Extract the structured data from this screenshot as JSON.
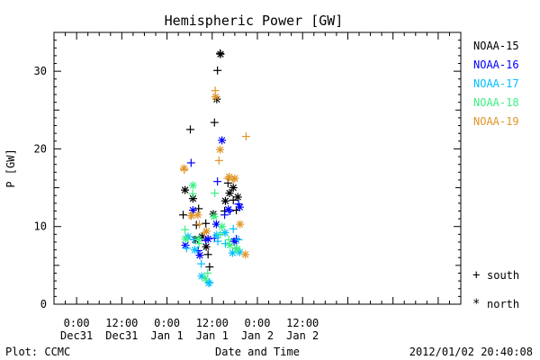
{
  "chart_data": {
    "type": "scatter",
    "title": "Hemispheric Power [GW]",
    "ylabel": "P [GW]",
    "xlabel": "Date and Time",
    "ylim": [
      0,
      35
    ],
    "yticks": [
      0,
      10,
      20,
      30
    ],
    "xlim_hours": [
      -30,
      78
    ],
    "xticks": [
      {
        "hours": -24,
        "line1": "0:00",
        "line2": "Dec31"
      },
      {
        "hours": -12,
        "line1": "12:00",
        "line2": "Dec31"
      },
      {
        "hours": 0,
        "line1": "0:00",
        "line2": "Jan 1"
      },
      {
        "hours": 12,
        "line1": "12:00",
        "line2": "Jan 1"
      },
      {
        "hours": 24,
        "line1": "0:00",
        "line2": "Jan 2"
      },
      {
        "hours": 36,
        "line1": "12:00",
        "line2": "Jan 2"
      }
    ],
    "grid": false,
    "legend_position": "right",
    "series": [
      {
        "name": "NOAA-15",
        "color": "#000000",
        "south": [
          [
            4.3,
            11.5
          ],
          [
            6.2,
            22.5
          ],
          [
            7.8,
            10.2
          ],
          [
            8.4,
            12.3
          ],
          [
            10.3,
            10.4
          ],
          [
            10.9,
            6.4
          ],
          [
            11.3,
            4.8
          ],
          [
            12.6,
            23.4
          ],
          [
            13.4,
            30.1
          ],
          [
            14.1,
            32.3
          ],
          [
            15.3,
            12.0
          ],
          [
            16.2,
            15.6
          ],
          [
            17.6,
            13.4
          ],
          [
            18.4,
            12.1
          ]
        ],
        "north": [
          [
            4.8,
            14.7
          ],
          [
            6.9,
            13.6
          ],
          [
            7.5,
            8.3
          ],
          [
            9.3,
            8.7
          ],
          [
            10.4,
            7.4
          ],
          [
            12.3,
            11.6
          ],
          [
            13.2,
            26.4
          ],
          [
            14.2,
            32.2
          ],
          [
            15.5,
            13.3
          ],
          [
            16.6,
            14.3
          ],
          [
            17.6,
            15.0
          ],
          [
            18.8,
            13.8
          ]
        ]
      },
      {
        "name": "NOAA-16",
        "color": "#0000ff",
        "south": [
          [
            6.4,
            18.2
          ],
          [
            8.3,
            6.9
          ],
          [
            10.3,
            8.2
          ],
          [
            12.6,
            8.5
          ],
          [
            13.4,
            15.8
          ],
          [
            15.3,
            11.5
          ],
          [
            16.7,
            12.0
          ],
          [
            18.4,
            8.4
          ],
          [
            19.0,
            12.9
          ]
        ],
        "north": [
          [
            4.9,
            7.6
          ],
          [
            6.9,
            12.1
          ],
          [
            8.7,
            6.3
          ],
          [
            10.9,
            8.4
          ],
          [
            13.1,
            10.3
          ],
          [
            14.6,
            21.1
          ],
          [
            16.3,
            12.2
          ],
          [
            17.8,
            8.1
          ],
          [
            19.3,
            12.5
          ]
        ]
      },
      {
        "name": "NOAA-17",
        "color": "#00bfff",
        "south": [
          [
            5.2,
            7.2
          ],
          [
            7.1,
            8.3
          ],
          [
            9.1,
            5.2
          ],
          [
            11.3,
            2.8
          ],
          [
            13.5,
            8.1
          ],
          [
            15.5,
            7.8
          ],
          [
            17.6,
            9.7
          ],
          [
            19.0,
            8.3
          ]
        ],
        "north": [
          [
            5.6,
            8.7
          ],
          [
            7.4,
            7.0
          ],
          [
            9.2,
            3.6
          ],
          [
            11.1,
            2.7
          ],
          [
            13.2,
            8.9
          ],
          [
            15.4,
            9.2
          ],
          [
            17.4,
            6.6
          ],
          [
            19.3,
            6.7
          ]
        ]
      },
      {
        "name": "NOAA-18",
        "color": "#3cf084",
        "south": [
          [
            4.8,
            9.6
          ],
          [
            6.8,
            14.2
          ],
          [
            8.5,
            7.8
          ],
          [
            10.8,
            4.0
          ],
          [
            12.7,
            14.3
          ],
          [
            14.2,
            9.0
          ],
          [
            16.4,
            8.3
          ],
          [
            18.3,
            7.2
          ]
        ],
        "north": [
          [
            4.9,
            8.4
          ],
          [
            6.9,
            15.3
          ],
          [
            8.4,
            8.4
          ],
          [
            10.2,
            3.3
          ],
          [
            12.5,
            11.3
          ],
          [
            14.6,
            10.0
          ],
          [
            16.7,
            7.6
          ],
          [
            18.6,
            7.1
          ]
        ]
      },
      {
        "name": "NOAA-19",
        "color": "#e0962c",
        "south": [
          [
            4.6,
            17.3
          ],
          [
            6.3,
            11.4
          ],
          [
            8.6,
            10.3
          ],
          [
            10.0,
            9.2
          ],
          [
            12.8,
            27.5
          ],
          [
            13.8,
            18.5
          ],
          [
            16.1,
            16.2
          ],
          [
            17.6,
            16.0
          ],
          [
            21.0,
            21.6
          ]
        ],
        "north": [
          [
            4.5,
            17.5
          ],
          [
            6.5,
            11.4
          ],
          [
            8.2,
            11.5
          ],
          [
            10.5,
            9.4
          ],
          [
            12.9,
            26.7
          ],
          [
            14.1,
            19.9
          ],
          [
            16.5,
            16.4
          ],
          [
            18.0,
            16.2
          ],
          [
            19.4,
            10.3
          ],
          [
            20.8,
            6.4
          ]
        ]
      }
    ]
  },
  "legend": {
    "south_label": "south",
    "north_label": "north"
  },
  "footer": {
    "plot_label": "Plot: CCMC",
    "timestamp": "2012/01/02 20:40:08"
  }
}
